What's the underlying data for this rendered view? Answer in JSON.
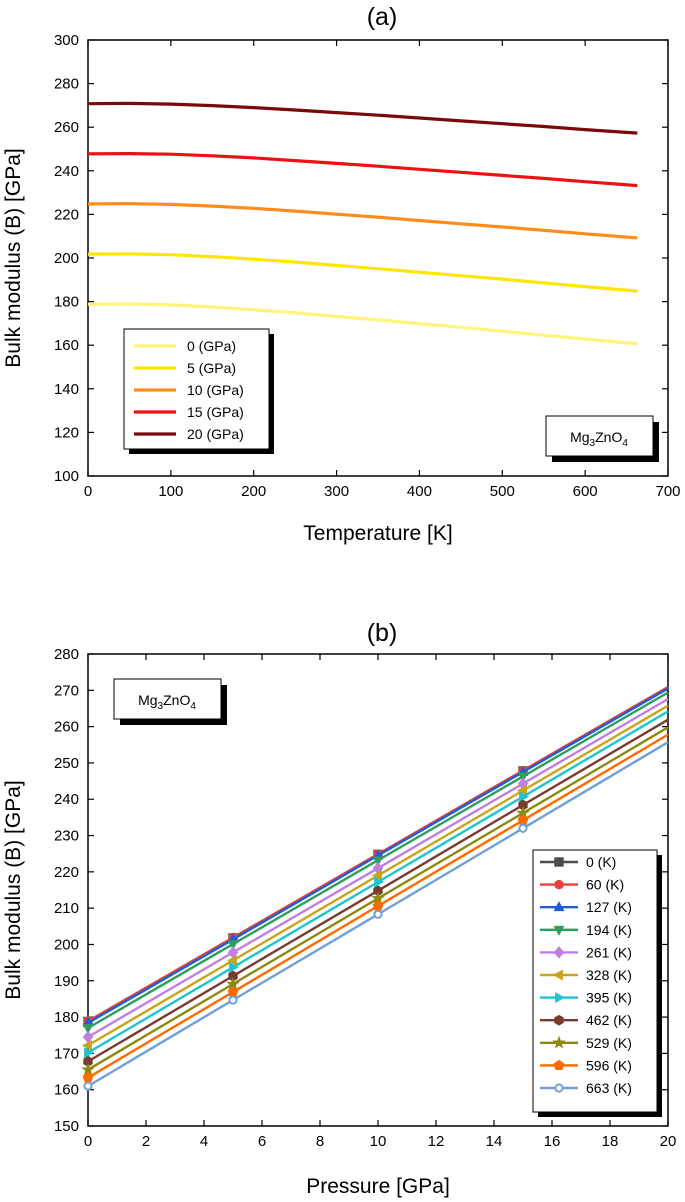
{
  "chart_data": [
    {
      "type": "line",
      "title": "(a)",
      "xlabel": "Temperature [K]",
      "ylabel": "Bulk modulus (B) [GPa]",
      "xlim": [
        0,
        700
      ],
      "ylim": [
        100,
        300
      ],
      "xticks": [
        "0",
        "100",
        "200",
        "300",
        "400",
        "500",
        "600",
        "700"
      ],
      "yticks": [
        "100",
        "120",
        "140",
        "160",
        "180",
        "200",
        "220",
        "240",
        "260",
        "280",
        "300"
      ],
      "annotation": {
        "base": "Mg",
        "sub1": "3",
        "mid": "ZnO",
        "sub2": "4"
      },
      "legend_position": "bottom-left",
      "x": [
        0,
        50,
        100,
        150,
        200,
        250,
        300,
        350,
        400,
        450,
        500,
        550,
        600,
        663
      ],
      "series": [
        {
          "name": "0 (GPa)",
          "color": "#fff37a",
          "values": [
            178.8,
            178.9,
            178.5,
            177.5,
            176.3,
            174.8,
            173.2,
            171.6,
            169.9,
            168.2,
            166.4,
            164.6,
            162.8,
            160.6
          ]
        },
        {
          "name": "5 (GPa)",
          "color": "#ffe600",
          "values": [
            201.8,
            201.9,
            201.5,
            200.6,
            199.5,
            198.1,
            196.6,
            195.1,
            193.5,
            191.9,
            190.3,
            188.6,
            186.9,
            184.8
          ]
        },
        {
          "name": "10 (GPa)",
          "color": "#ff8c1a",
          "values": [
            224.8,
            224.9,
            224.6,
            223.8,
            222.8,
            221.5,
            220.1,
            218.7,
            217.2,
            215.7,
            214.2,
            212.7,
            211.1,
            209.2
          ]
        },
        {
          "name": "15 (GPa)",
          "color": "#ee1111",
          "values": [
            247.8,
            247.9,
            247.6,
            246.9,
            245.9,
            244.7,
            243.4,
            242.1,
            240.7,
            239.3,
            237.9,
            236.5,
            235.0,
            233.2
          ]
        },
        {
          "name": "20 (GPa)",
          "color": "#7a0a0a",
          "values": [
            270.8,
            270.9,
            270.6,
            269.9,
            269.0,
            267.9,
            266.7,
            265.5,
            264.2,
            262.9,
            261.6,
            260.3,
            258.9,
            257.3
          ]
        }
      ]
    },
    {
      "type": "line",
      "title": "(b)",
      "xlabel": "Pressure [GPa]",
      "ylabel": "Bulk modulus (B) [GPa]",
      "xlim": [
        0,
        20
      ],
      "ylim": [
        150,
        280
      ],
      "xticks": [
        "0",
        "2",
        "4",
        "6",
        "8",
        "10",
        "12",
        "14",
        "16",
        "18",
        "20"
      ],
      "yticks": [
        "150",
        "160",
        "170",
        "180",
        "190",
        "200",
        "210",
        "220",
        "230",
        "240",
        "250",
        "260",
        "270",
        "280"
      ],
      "annotation": {
        "base": "Mg",
        "sub1": "3",
        "mid": "ZnO",
        "sub2": "4"
      },
      "legend_position": "bottom-right",
      "x": [
        0,
        5,
        10,
        15,
        20
      ],
      "series": [
        {
          "name": "0 (K)",
          "color": "#4d4d4d",
          "marker": "square",
          "values": [
            178.8,
            201.8,
            224.8,
            247.8,
            270.8
          ]
        },
        {
          "name": "60 (K)",
          "color": "#e8403a",
          "marker": "circle",
          "values": [
            178.9,
            201.9,
            224.9,
            247.9,
            270.9
          ]
        },
        {
          "name": "127 (K)",
          "color": "#1f5fd6",
          "marker": "triangle-up",
          "values": [
            178.4,
            201.4,
            224.5,
            247.5,
            270.5
          ]
        },
        {
          "name": "194 (K)",
          "color": "#2e9e5e",
          "marker": "triangle-down",
          "values": [
            177.0,
            200.1,
            223.2,
            246.3,
            269.4
          ]
        },
        {
          "name": "261 (K)",
          "color": "#c07ee0",
          "marker": "diamond",
          "values": [
            174.5,
            197.8,
            221.0,
            244.3,
            267.6
          ]
        },
        {
          "name": "328 (K)",
          "color": "#c9a31a",
          "marker": "triangle-left",
          "values": [
            172.2,
            195.6,
            219.0,
            242.4,
            265.8
          ]
        },
        {
          "name": "395 (K)",
          "color": "#1fc4d0",
          "marker": "triangle-right",
          "values": [
            170.2,
            193.7,
            217.2,
            240.7,
            264.2
          ]
        },
        {
          "name": "462 (K)",
          "color": "#7a3b2e",
          "marker": "hexagon",
          "values": [
            167.8,
            191.3,
            214.8,
            238.4,
            261.9
          ]
        },
        {
          "name": "529 (K)",
          "color": "#8a8a10",
          "marker": "star",
          "values": [
            165.5,
            189.1,
            212.7,
            236.2,
            259.8
          ]
        },
        {
          "name": "596 (K)",
          "color": "#ff6a00",
          "marker": "pentagon",
          "values": [
            163.3,
            186.9,
            210.6,
            234.2,
            257.8
          ]
        },
        {
          "name": "663 (K)",
          "color": "#6fa0d6",
          "marker": "circle-open",
          "values": [
            161.0,
            184.7,
            208.3,
            232.0,
            255.7
          ]
        }
      ]
    }
  ]
}
